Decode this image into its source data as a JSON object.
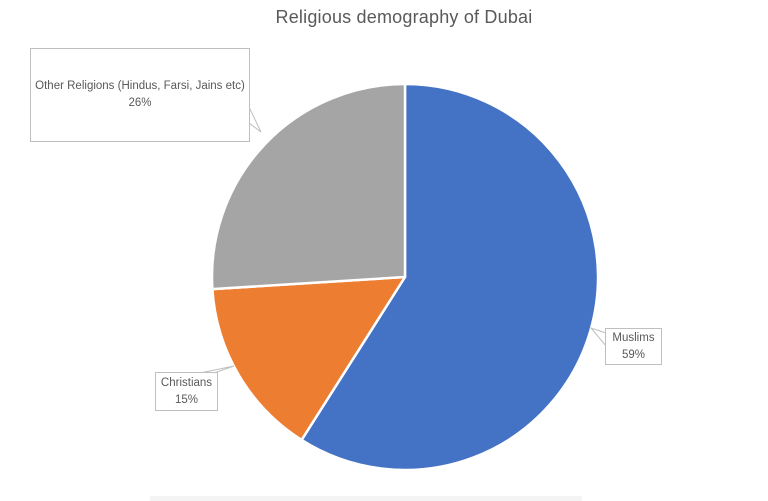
{
  "chart_data": {
    "type": "pie",
    "title": "Religious demography of Dubai",
    "start_angle_deg": 0,
    "direction": "clockwise",
    "legend": "none",
    "label_style": "callout boxes showing category name and percent",
    "slices": [
      {
        "label": "Muslims",
        "value": 59,
        "pct_label": "59%",
        "color": "#4472C4"
      },
      {
        "label": "Christians",
        "value": 15,
        "pct_label": "15%",
        "color": "#ED7D31"
      },
      {
        "label": "Other Religions (Hindus, Farsi, Jains etc)",
        "value": 26,
        "pct_label": "26%",
        "color": "#A5A5A5"
      }
    ]
  },
  "colors": {
    "title_text": "#595959",
    "label_text": "#595959",
    "callout_border": "#BFBFBF",
    "slice_separator": "#FFFFFF",
    "background": "#FFFFFF"
  }
}
